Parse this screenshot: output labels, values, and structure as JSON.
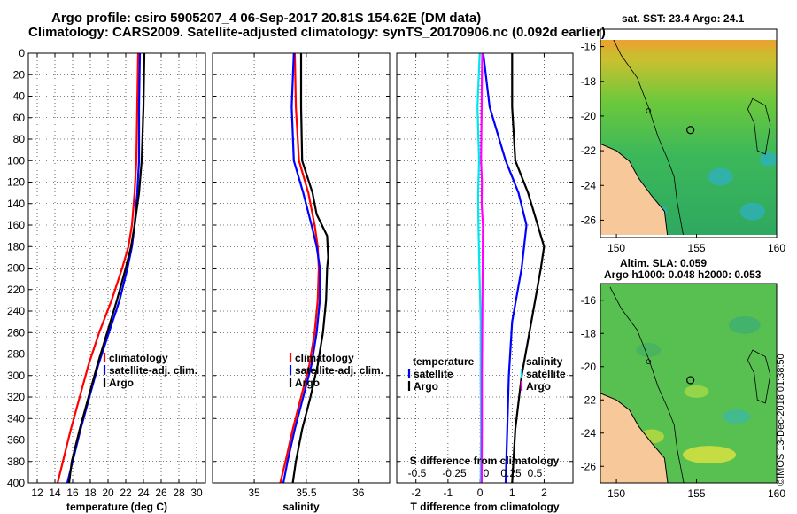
{
  "header": {
    "title_line1": "Argo profile: csiro 5905207_4 06-Sep-2017 20.81S 154.62E (DM data)",
    "title_line2": "Climatology: CARS2009. Satellite-adjusted climatology: synTS_20170906.nc (0.092d earlier)"
  },
  "maps": {
    "sst_title": "sat. SST: 23.4 Argo: 24.1",
    "sla_title_line1": "Altim. SLA: 0.059",
    "sla_title_line2": "Argo h1000: 0.048 h2000: 0.053",
    "lon_ticks": [
      "150",
      "155",
      "160"
    ],
    "lat_ticks": [
      "-16",
      "-18",
      "-20",
      "-22",
      "-24",
      "-26"
    ],
    "argo_lon": 154.62,
    "argo_lat": -20.81,
    "colors": {
      "land": "#f7c99a",
      "coast": "#000000"
    }
  },
  "footer": {
    "stamp": "©IMOS 13-Dec-2018 01:38:50"
  },
  "chart_data": [
    {
      "type": "line",
      "id": "temperature",
      "xlabel": "temperature (deg C)",
      "ylabel": "",
      "xlim": [
        11,
        31
      ],
      "ylim": [
        400,
        0
      ],
      "xticks": [
        "12",
        "14",
        "16",
        "18",
        "20",
        "22",
        "24",
        "26",
        "28",
        "30"
      ],
      "yticks": [
        "0",
        "20",
        "40",
        "60",
        "80",
        "100",
        "120",
        "140",
        "160",
        "180",
        "200",
        "220",
        "240",
        "260",
        "280",
        "300",
        "320",
        "340",
        "360",
        "380",
        "400"
      ],
      "legend": [
        "climatology",
        "satellite-adj. clim.",
        "Argo"
      ],
      "series": [
        {
          "name": "climatology",
          "color": "#ff0000",
          "depth": [
            0,
            50,
            100,
            130,
            160,
            180,
            200,
            230,
            260,
            290,
            320,
            350,
            380,
            400
          ],
          "values": [
            23.4,
            23.3,
            23.2,
            23.0,
            22.7,
            22.3,
            21.6,
            20.4,
            19.0,
            17.8,
            16.8,
            15.8,
            14.9,
            14.3
          ]
        },
        {
          "name": "satellite-adj. clim.",
          "color": "#0000ff",
          "depth": [
            0,
            50,
            100,
            130,
            160,
            180,
            200,
            230,
            260,
            290,
            320,
            350,
            380,
            400
          ],
          "values": [
            23.6,
            23.5,
            23.5,
            23.3,
            23.0,
            22.7,
            22.2,
            21.3,
            20.1,
            18.9,
            17.9,
            16.9,
            16.0,
            15.4
          ]
        },
        {
          "name": "Argo",
          "color": "#000000",
          "depth": [
            0,
            50,
            100,
            130,
            160,
            180,
            200,
            230,
            260,
            290,
            320,
            350,
            380,
            400
          ],
          "values": [
            24.1,
            24.0,
            23.8,
            23.5,
            23.0,
            22.6,
            22.0,
            21.0,
            19.9,
            18.8,
            17.8,
            16.8,
            15.9,
            15.6
          ]
        }
      ]
    },
    {
      "type": "line",
      "id": "salinity",
      "xlabel": "salinity",
      "ylabel": "",
      "xlim": [
        34.6,
        36.3
      ],
      "ylim": [
        400,
        0
      ],
      "xticks": [
        "35",
        "35.5",
        "36"
      ],
      "legend": [
        "climatology",
        "satellite-adj. clim.",
        "Argo"
      ],
      "series": [
        {
          "name": "climatology",
          "color": "#ff0000",
          "depth": [
            0,
            50,
            100,
            130,
            160,
            180,
            200,
            230,
            260,
            290,
            320,
            350,
            380,
            400
          ],
          "values": [
            35.39,
            35.4,
            35.43,
            35.52,
            35.58,
            35.61,
            35.62,
            35.61,
            35.58,
            35.53,
            35.45,
            35.37,
            35.3,
            35.25
          ]
        },
        {
          "name": "satellite-adj. clim.",
          "color": "#0000ff",
          "depth": [
            0,
            50,
            100,
            130,
            160,
            180,
            200,
            230,
            260,
            290,
            320,
            350,
            380,
            400
          ],
          "values": [
            35.38,
            35.36,
            35.38,
            35.47,
            35.55,
            35.6,
            35.63,
            35.63,
            35.6,
            35.55,
            35.47,
            35.39,
            35.32,
            35.28
          ]
        },
        {
          "name": "Argo",
          "color": "#000000",
          "depth": [
            0,
            50,
            100,
            130,
            150,
            170,
            190,
            200,
            230,
            260,
            290,
            320,
            350,
            380,
            400
          ],
          "values": [
            35.45,
            35.45,
            35.46,
            35.56,
            35.6,
            35.7,
            35.71,
            35.7,
            35.69,
            35.66,
            35.61,
            35.54,
            35.46,
            35.4,
            35.37
          ]
        }
      ]
    },
    {
      "type": "line",
      "id": "differences",
      "xlabel": "T difference from climatology",
      "xlabel_top": "S difference from climatology",
      "ylabel": "",
      "xlim": [
        -2.6,
        2.9
      ],
      "ylim": [
        400,
        0
      ],
      "xticks": [
        "-2",
        "-1",
        "0",
        "1",
        "2"
      ],
      "s_xticks": [
        "-0.5",
        "-0.25",
        "0",
        "0.25",
        "0.5"
      ],
      "legend_left_title": "temperature",
      "legend_left": [
        "satellite",
        "Argo"
      ],
      "legend_right_title": "salinity",
      "legend_right": [
        "satellite",
        "Argo"
      ],
      "series": [
        {
          "name": "T satellite",
          "color": "#0000ff",
          "depth": [
            0,
            50,
            100,
            130,
            160,
            200,
            250,
            300,
            350,
            400
          ],
          "values": [
            0.1,
            0.3,
            0.8,
            1.2,
            1.45,
            1.3,
            1.0,
            0.9,
            0.85,
            0.8
          ]
        },
        {
          "name": "T Argo",
          "color": "#000000",
          "depth": [
            0,
            50,
            100,
            130,
            160,
            180,
            200,
            250,
            300,
            350,
            400
          ],
          "values": [
            1.0,
            1.0,
            1.1,
            1.5,
            1.8,
            2.0,
            1.9,
            1.6,
            1.3,
            1.1,
            1.0
          ]
        },
        {
          "name": "S satellite",
          "color": "#00e5ee",
          "depth": [
            0,
            50,
            100,
            130,
            160,
            200,
            250,
            300,
            350,
            400
          ],
          "values": [
            -0.01,
            -0.08,
            -0.03,
            -0.06,
            -0.05,
            -0.02,
            0.02,
            0.02,
            0.03,
            0.02
          ]
        },
        {
          "name": "S Argo",
          "color": "#ff00ff",
          "depth": [
            0,
            20,
            50,
            80,
            100,
            120,
            140,
            160,
            200,
            250,
            300,
            350,
            400
          ],
          "values": [
            0.07,
            0.06,
            0.05,
            0.04,
            0.03,
            0.06,
            0.05,
            0.09,
            0.08,
            0.07,
            0.06,
            0.06,
            0.05
          ]
        }
      ]
    }
  ]
}
